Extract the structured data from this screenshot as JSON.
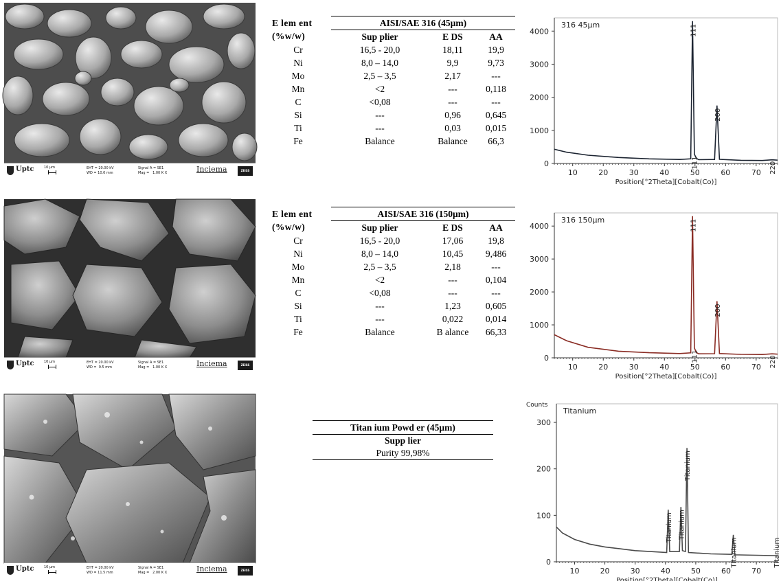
{
  "sem_panels": [
    {
      "logo": "Uptc",
      "scale": "10 µm",
      "meta1": "EHT = 20.00 kV\nWD = 10.0 mm",
      "meta2": "Signal A = SE1\nMag =   1.00 K X",
      "brand": "Inciema",
      "vendor": "ZEISS"
    },
    {
      "logo": "Uptc",
      "scale": "10 µm",
      "meta1": "EHT = 20.00 kV\nWD =  9.5 mm",
      "meta2": "Signal A = SE1\nMag =   1.00 K X",
      "brand": "Inciema",
      "vendor": "ZEISS"
    },
    {
      "logo": "Uptc",
      "scale": "10 µm",
      "meta1": "EHT = 20.00 kV\nWD = 11.5 mm",
      "meta2": "Signal A = SE1\nMag =   2.00 K X",
      "brand": "Inciema",
      "vendor": "ZEISS"
    }
  ],
  "tables": [
    {
      "element_header_1": "E lem ent",
      "element_header_2": "(%w/w)",
      "group_header": "AISI/SAE 316 (45µm)",
      "sub_headers": [
        "Sup plier",
        "E DS",
        "AA"
      ],
      "rows": [
        [
          "Cr",
          "16,5 - 20,0",
          "18,11",
          "19,9"
        ],
        [
          "Ni",
          "8,0 – 14,0",
          "9,9",
          "9,73"
        ],
        [
          "Mo",
          "2,5 – 3,5",
          "2,17",
          "---"
        ],
        [
          "Mn",
          "<2",
          "---",
          "0,118"
        ],
        [
          "C",
          "<0,08",
          "---",
          "---"
        ],
        [
          "Si",
          "---",
          "0,96",
          "0,645"
        ],
        [
          "Ti",
          "---",
          "0,03",
          "0,015"
        ],
        [
          "Fe",
          "Balance",
          "Balance",
          "66,3"
        ]
      ]
    },
    {
      "element_header_1": "E lem ent",
      "element_header_2": "(%w/w)",
      "group_header": "AISI/SAE 316 (150µm)",
      "sub_headers": [
        "Sup plier",
        "E DS",
        "AA"
      ],
      "rows": [
        [
          "Cr",
          "16,5 - 20,0",
          "17,06",
          "19,8"
        ],
        [
          "Ni",
          "8,0 – 14,0",
          "10,45",
          "9,486"
        ],
        [
          "Mo",
          "2,5 – 3,5",
          "2,18",
          "---"
        ],
        [
          "Mn",
          "<2",
          "---",
          "0,104"
        ],
        [
          "C",
          "<0,08",
          "---",
          "---"
        ],
        [
          "Si",
          "---",
          "1,23",
          "0,605"
        ],
        [
          "Ti",
          "---",
          "0,022",
          "0,014"
        ],
        [
          "Fe",
          "Balance",
          "B alance",
          "66,33"
        ]
      ]
    }
  ],
  "titanium_table": {
    "title": "Titan ium Powd er (45µm)",
    "sub": "Supp lier",
    "purity": "Purity 99,98%"
  },
  "chart_data": [
    {
      "type": "line",
      "title": "316 45µm",
      "xlabel": "Position[°2Theta][Cobalt(Co)]",
      "ylabel": "",
      "xlim": [
        4,
        77
      ],
      "ylim": [
        0,
        4400
      ],
      "xticks": [
        10,
        20,
        30,
        40,
        50,
        60,
        70
      ],
      "yticks": [
        0,
        1000,
        2000,
        3000,
        4000
      ],
      "line_color": "#1c2431",
      "series": [
        {
          "x": [
            4,
            8,
            15,
            25,
            35,
            45,
            48.6,
            49.2,
            49.8,
            50.4,
            51.2,
            56.4,
            57.2,
            58,
            65,
            72,
            75.2,
            77
          ],
          "y": [
            430,
            340,
            250,
            180,
            140,
            120,
            140,
            4300,
            280,
            160,
            115,
            120,
            1750,
            125,
            95,
            90,
            110,
            100
          ]
        }
      ],
      "peak_labels": [
        {
          "x": 49.3,
          "y": 4300,
          "text": "111"
        },
        {
          "x": 49.7,
          "y": 300,
          "text": "111"
        },
        {
          "x": 57.2,
          "y": 1750,
          "text": "200"
        },
        {
          "x": 75.2,
          "y": 150,
          "text": "220"
        }
      ]
    },
    {
      "type": "line",
      "title": "316 150µm",
      "xlabel": "Position[°2Theta][Cobalt(Co)]",
      "ylabel": "",
      "xlim": [
        4,
        77
      ],
      "ylim": [
        0,
        4400
      ],
      "xticks": [
        10,
        20,
        30,
        40,
        50,
        60,
        70
      ],
      "yticks": [
        0,
        1000,
        2000,
        3000,
        4000
      ],
      "line_color": "#8a2c24",
      "series": [
        {
          "x": [
            4,
            8,
            15,
            25,
            35,
            45,
            48.6,
            49.2,
            49.8,
            50.4,
            51.2,
            56.4,
            57.2,
            58,
            65,
            72,
            75.2,
            77
          ],
          "y": [
            700,
            520,
            320,
            200,
            155,
            130,
            150,
            4300,
            300,
            165,
            120,
            125,
            1720,
            130,
            105,
            100,
            120,
            110
          ]
        }
      ],
      "peak_labels": [
        {
          "x": 49.3,
          "y": 4300,
          "text": "111"
        },
        {
          "x": 49.7,
          "y": 320,
          "text": "111"
        },
        {
          "x": 57.2,
          "y": 1720,
          "text": "200"
        },
        {
          "x": 75.2,
          "y": 160,
          "text": "220"
        }
      ]
    },
    {
      "type": "line",
      "title": "Titanium",
      "ylabel": "Counts",
      "xlabel": "Position[°2Theta][Cobalt(Co)]",
      "xlim": [
        4,
        77
      ],
      "ylim": [
        0,
        340
      ],
      "xticks": [
        10,
        20,
        30,
        40,
        50,
        60,
        70
      ],
      "yticks": [
        0,
        100,
        200,
        300
      ],
      "line_color": "#4a4a4a",
      "series": [
        {
          "x": [
            4,
            6,
            10,
            15,
            20,
            25,
            30,
            35,
            40.4,
            40.9,
            41.4,
            44.6,
            45.1,
            45.6,
            46.6,
            47.1,
            47.6,
            55,
            61.9,
            62.4,
            62.9,
            70,
            77
          ],
          "y": [
            75,
            62,
            48,
            38,
            32,
            28,
            24,
            22,
            20,
            112,
            22,
            22,
            118,
            24,
            22,
            245,
            20,
            17,
            16,
            58,
            15,
            14,
            13
          ]
        }
      ],
      "peak_labels": [
        {
          "x": 40.9,
          "y": 112,
          "text": "Titanium"
        },
        {
          "x": 45.1,
          "y": 118,
          "text": "Titanium"
        },
        {
          "x": 47.1,
          "y": 245,
          "text": "Titanium"
        },
        {
          "x": 62.4,
          "y": 58,
          "text": "Titanium"
        },
        {
          "x": 76.6,
          "y": 58,
          "text": "Titanium"
        }
      ]
    }
  ]
}
